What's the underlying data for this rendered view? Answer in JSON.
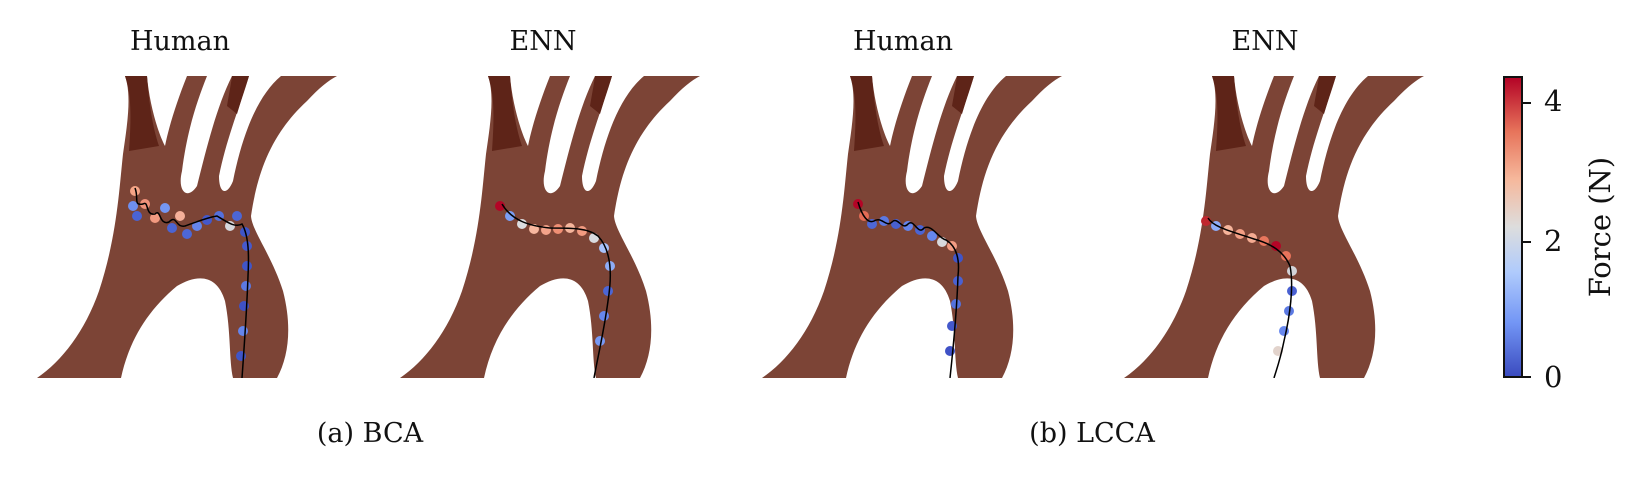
{
  "panels": [
    {
      "title": "Human"
    },
    {
      "title": "ENN"
    },
    {
      "title": "Human"
    },
    {
      "title": "ENN"
    }
  ],
  "captions": [
    "(a) BCA",
    "(b) LCCA"
  ],
  "colorbar": {
    "label": "Force (N)",
    "ticks": [
      "0",
      "2",
      "4"
    ],
    "colormap": "coolwarm",
    "low_color": "#3b4cc0",
    "high_color": "#b40426"
  },
  "colors": {
    "vessel": "#7c4436",
    "vessel_dark": "#5e2418",
    "path_line": "#000000"
  }
}
